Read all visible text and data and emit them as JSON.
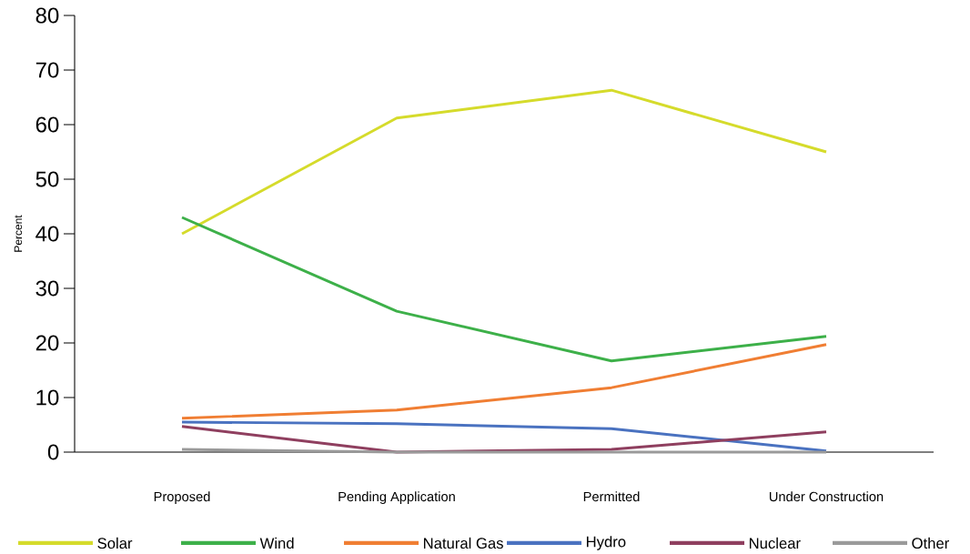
{
  "chart_data": {
    "type": "line",
    "ylabel": "Percent",
    "categories": [
      "Proposed",
      "Pending Application",
      "Permitted",
      "Under Construction"
    ],
    "series": [
      {
        "name": "Solar",
        "color": "#d5db2b",
        "values": [
          40,
          61.2,
          66.3,
          55
        ]
      },
      {
        "name": "Wind",
        "color": "#3db049",
        "values": [
          43,
          25.8,
          16.7,
          21.2
        ]
      },
      {
        "name": "Natural Gas",
        "color": "#f07e33",
        "values": [
          6.2,
          7.7,
          11.8,
          19.7
        ]
      },
      {
        "name": "Hydro",
        "color": "#4a72c0",
        "values": [
          5.5,
          5.2,
          4.3,
          0.2
        ]
      },
      {
        "name": "Nuclear",
        "color": "#8f3f5f",
        "values": [
          4.7,
          0,
          0.5,
          3.7
        ]
      },
      {
        "name": "Other",
        "color": "#9a9a9a",
        "values": [
          0.5,
          0,
          0,
          0
        ]
      }
    ],
    "ylim": [
      0,
      80
    ],
    "yticks": [
      0,
      10,
      20,
      30,
      40,
      50,
      60,
      70,
      80
    ],
    "legend": "bottom",
    "marker": "none",
    "line_style": "solid"
  }
}
